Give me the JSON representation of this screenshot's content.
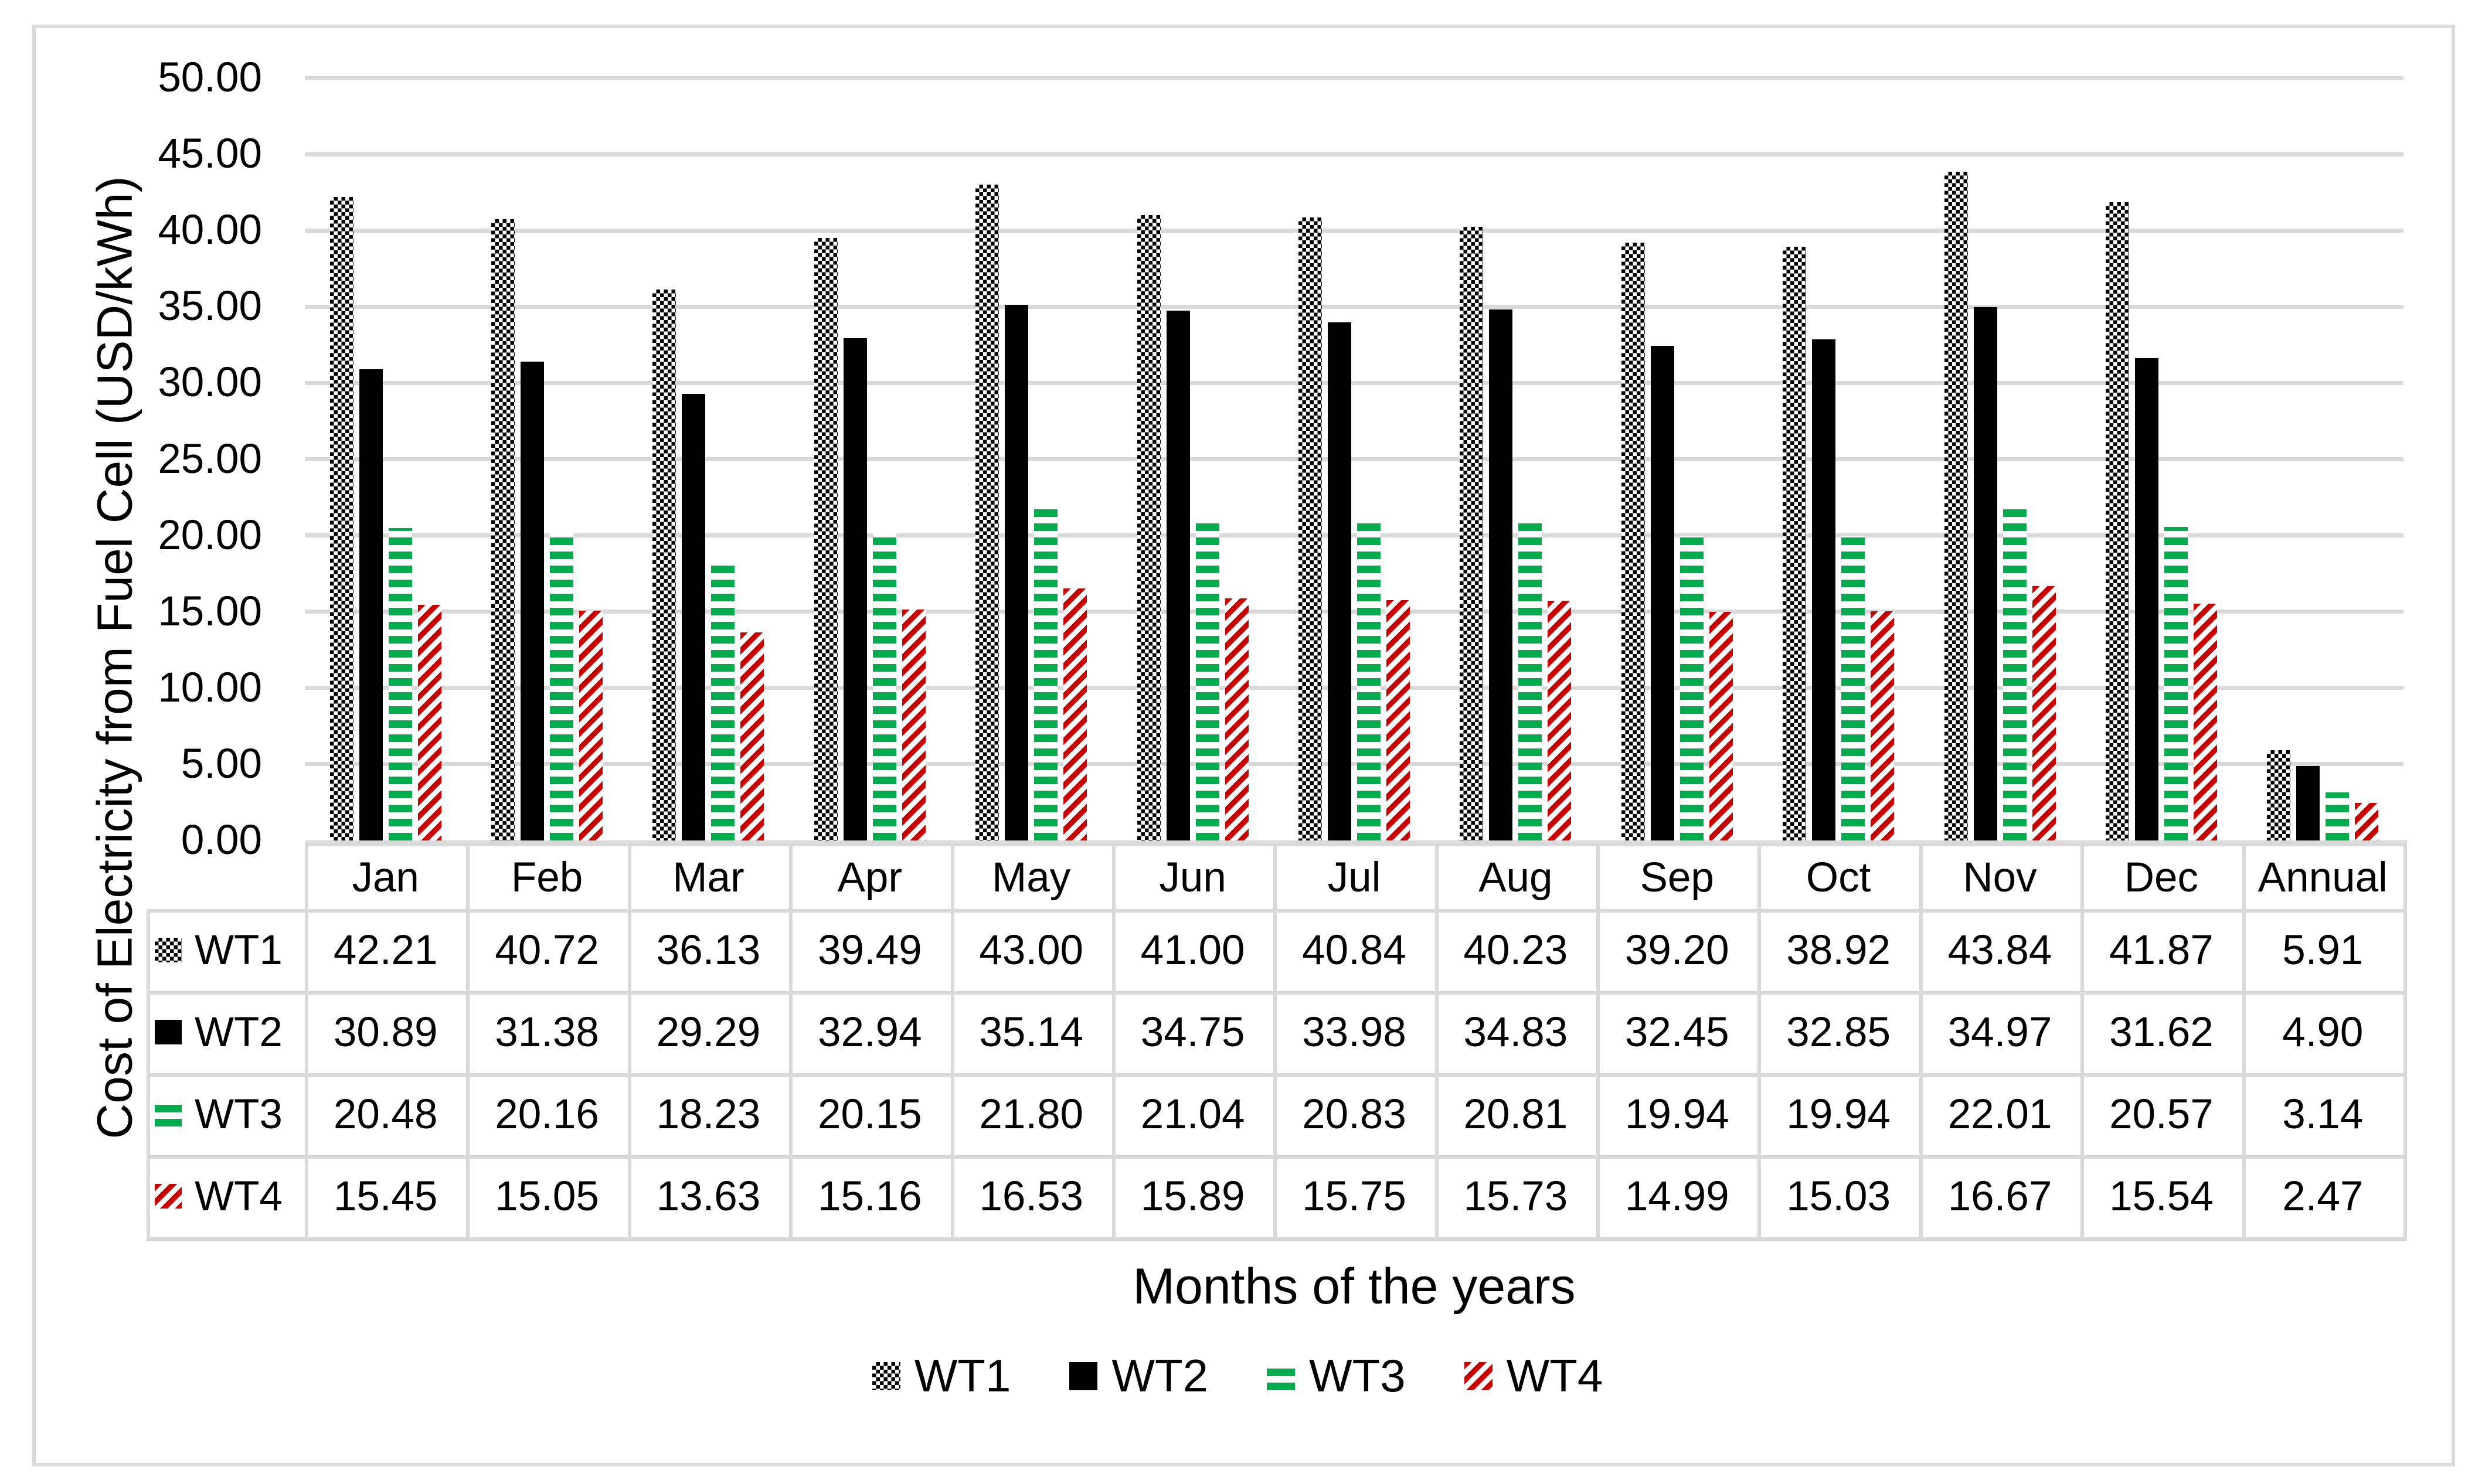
{
  "chart_data": {
    "type": "bar",
    "title": "",
    "categories": [
      "Jan",
      "Feb",
      "Mar",
      "Apr",
      "May",
      "Jun",
      "Jul",
      "Aug",
      "Sep",
      "Oct",
      "Nov",
      "Dec",
      "Annual"
    ],
    "series": [
      {
        "name": "WT1",
        "pattern": "checker",
        "color": "#000000",
        "values": [
          42.21,
          40.72,
          36.13,
          39.49,
          43.0,
          41.0,
          40.84,
          40.23,
          39.2,
          38.92,
          43.84,
          41.87,
          5.91
        ]
      },
      {
        "name": "WT2",
        "pattern": "solid",
        "color": "#000000",
        "values": [
          30.89,
          31.38,
          29.29,
          32.94,
          35.14,
          34.75,
          33.98,
          34.83,
          32.45,
          32.85,
          34.97,
          31.62,
          4.9
        ]
      },
      {
        "name": "WT3",
        "pattern": "hstripe",
        "color": "#00AC4D",
        "values": [
          20.48,
          20.16,
          18.23,
          20.15,
          21.8,
          21.04,
          20.83,
          20.81,
          19.94,
          19.94,
          22.01,
          20.57,
          3.14
        ]
      },
      {
        "name": "WT4",
        "pattern": "diag",
        "color": "#C80000",
        "values": [
          15.45,
          15.05,
          13.63,
          15.16,
          16.53,
          15.89,
          15.75,
          15.73,
          14.99,
          15.03,
          16.67,
          15.54,
          2.47
        ]
      }
    ],
    "xlabel": "Months of the years",
    "ylabel": "Cost of Electricity from Fuel Cell (USD/kWh)",
    "ylim": [
      0,
      50
    ],
    "ytick_step": 5,
    "y_ticks": [
      "0.00",
      "5.00",
      "10.00",
      "15.00",
      "20.00",
      "25.00",
      "30.00",
      "35.00",
      "40.00",
      "45.00",
      "50.00"
    ],
    "grid": "horizontal",
    "legend_position": "bottom",
    "data_table_shown": true
  },
  "colors": {
    "gridline": "#D9D9D9",
    "table_border": "#D9D9D9",
    "background": "#FFFFFF",
    "text": "#000000",
    "wt3_green": "#00AC4D",
    "wt4_red": "#C80000",
    "wt1_wt2_black": "#000000"
  }
}
